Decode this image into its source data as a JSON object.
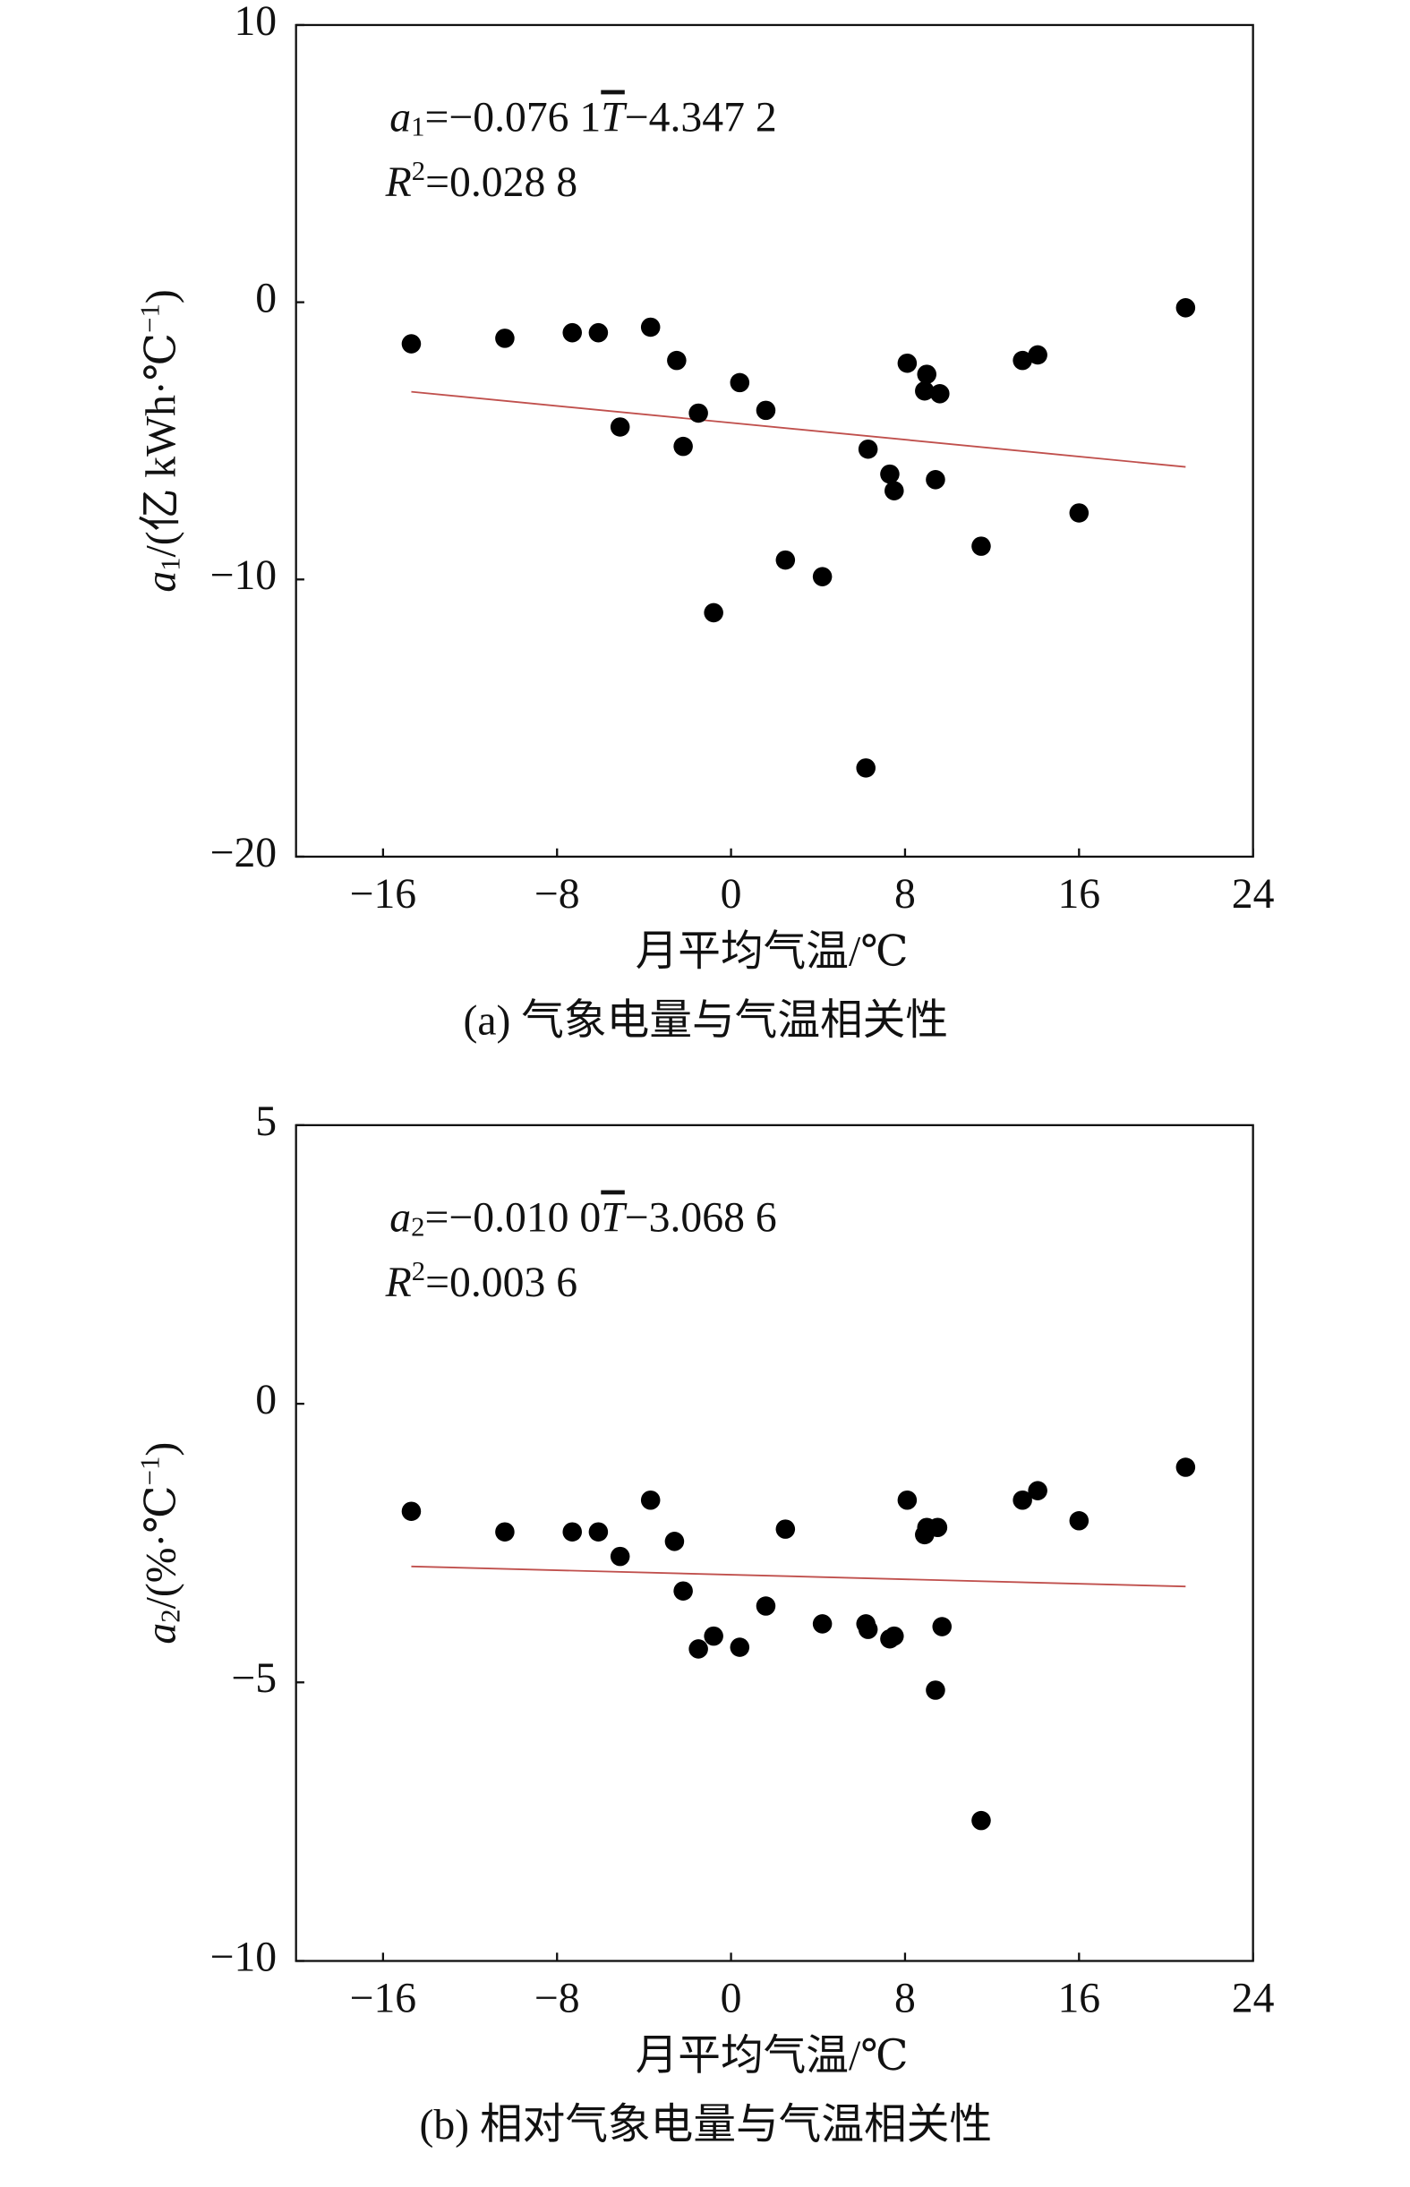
{
  "chart_data": [
    {
      "type": "scatter",
      "caption": "(a) 气象电量与气温相关性",
      "x_label": "月平均气温/℃",
      "y_label": [
        "a",
        "1",
        "/(亿 kWh·℃",
        "−1",
        ")"
      ],
      "equation": [
        "a",
        "1",
        "=−0.076 1",
        "T",
        "−4.347 2"
      ],
      "r2": [
        "R",
        "2",
        "=0.028 8"
      ],
      "xlim": [
        -20,
        24
      ],
      "xticks": [
        {
          "value": -16,
          "label": "−16"
        },
        {
          "value": -8,
          "label": "−8"
        },
        0,
        8,
        16,
        24
      ],
      "ylim": [
        -20,
        10
      ],
      "yticks": [
        {
          "value": -20,
          "label": "−20"
        },
        {
          "value": -10,
          "label": "−10"
        },
        0,
        10
      ],
      "series": [
        {
          "color": "#000000",
          "x": [
            -14.7,
            -10.4,
            -7.3,
            -6.1,
            -3.7,
            -5.1,
            -2.5,
            -2.2,
            -1.5,
            -0.8,
            0.4,
            1.6,
            2.5,
            4.2,
            6.3,
            6.2,
            7.3,
            7.5,
            8.1,
            9.0,
            8.9,
            9.6,
            9.4,
            11.5,
            13.4,
            14.1,
            16.0,
            20.9
          ],
          "values": [
            -1.5,
            -1.3,
            -1.1,
            -1.1,
            -0.9,
            -4.5,
            -2.1,
            -5.2,
            -4.0,
            -11.2,
            -2.9,
            -3.9,
            -9.3,
            -9.9,
            -5.3,
            -16.8,
            -6.2,
            -6.8,
            -2.2,
            -2.6,
            -3.2,
            -3.3,
            -6.4,
            -8.8,
            -2.1,
            -1.9,
            -7.6,
            -0.2
          ]
        }
      ],
      "trend": {
        "color": "#c0504d",
        "x": [
          -14.7,
          20.9
        ],
        "values": [
          -3.23,
          -5.94
        ]
      }
    },
    {
      "type": "scatter",
      "caption": "(b) 相对气象电量与气温相关性",
      "x_label": "月平均气温/℃",
      "y_label": [
        "a",
        "2",
        "/(%·℃",
        "−1",
        ")"
      ],
      "equation": [
        "a",
        "2",
        "=−0.010 0",
        "T",
        "−3.068 6"
      ],
      "r2": [
        "R",
        "2",
        "=0.003 6"
      ],
      "xlim": [
        -20,
        24
      ],
      "xticks": [
        {
          "value": -16,
          "label": "−16"
        },
        {
          "value": -8,
          "label": "−8"
        },
        0,
        8,
        16,
        24
      ],
      "ylim": [
        -10,
        5
      ],
      "yticks": [
        {
          "value": -10,
          "label": "−10"
        },
        {
          "value": -5,
          "label": "−5"
        },
        0,
        5
      ],
      "series": [
        {
          "color": "#000000",
          "x": [
            -14.7,
            -10.4,
            -7.3,
            -6.1,
            -5.1,
            -3.7,
            -2.6,
            -2.2,
            -1.5,
            -0.8,
            0.4,
            1.6,
            2.5,
            4.2,
            6.2,
            6.3,
            7.3,
            7.5,
            8.1,
            8.9,
            9.0,
            9.5,
            9.4,
            9.7,
            11.5,
            13.4,
            14.1,
            16.0,
            20.9
          ],
          "values": [
            -1.93,
            -2.3,
            -2.3,
            -2.3,
            -2.74,
            -1.73,
            -2.47,
            -3.36,
            -4.4,
            -4.17,
            -4.37,
            -3.63,
            -2.25,
            -3.95,
            -3.95,
            -4.05,
            -4.22,
            -4.17,
            -1.73,
            -2.35,
            -2.22,
            -2.22,
            -5.14,
            -4.0,
            -7.48,
            -1.73,
            -1.56,
            -2.1,
            -1.14
          ]
        }
      ],
      "trend": {
        "color": "#c0504d",
        "x": [
          -14.7,
          20.9
        ],
        "values": [
          -2.92,
          -3.28
        ]
      }
    }
  ]
}
